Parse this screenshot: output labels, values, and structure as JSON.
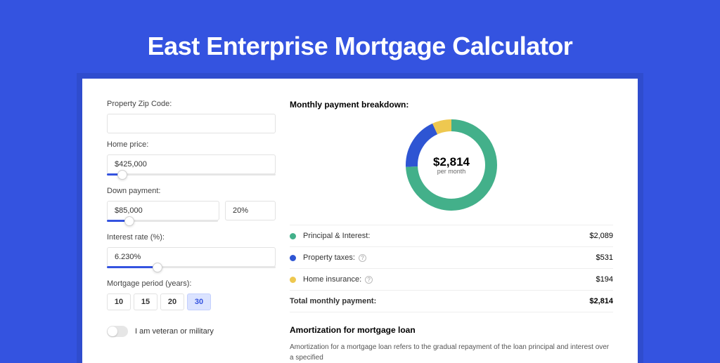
{
  "colors": {
    "brand": "#3453e0",
    "card_bg": "#ffffff",
    "text": "#333333",
    "muted": "#666666",
    "border": "#e2e2e2"
  },
  "hero": {
    "title": "East Enterprise Mortgage Calculator"
  },
  "form": {
    "zip": {
      "label": "Property Zip Code:",
      "value": ""
    },
    "price": {
      "label": "Home price:",
      "value": "$425,000",
      "slider_pct": 9
    },
    "down": {
      "label": "Down payment:",
      "value": "$85,000",
      "pct": "20%",
      "slider_pct": 20
    },
    "rate": {
      "label": "Interest rate (%):",
      "value": "6.230%",
      "slider_pct": 30
    },
    "period": {
      "label": "Mortgage period (years):",
      "options": [
        "10",
        "15",
        "20",
        "30"
      ],
      "selected": "30"
    },
    "veteran": {
      "on": false,
      "label": "I am veteran or military"
    }
  },
  "breakdown": {
    "title": "Monthly payment breakdown:",
    "donut": {
      "size": 130,
      "thickness": 17,
      "center_value": "$2,814",
      "center_unit": "per month",
      "slices": [
        {
          "key": "pi",
          "color": "#43b08a",
          "value": 2089
        },
        {
          "key": "tax",
          "color": "#2e55d3",
          "value": 531
        },
        {
          "key": "ins",
          "color": "#eec850",
          "value": 194
        }
      ]
    },
    "rows": [
      {
        "swatch": "#43b08a",
        "label": "Principal & Interest:",
        "info": false,
        "value": "$2,089"
      },
      {
        "swatch": "#2e55d3",
        "label": "Property taxes:",
        "info": true,
        "value": "$531"
      },
      {
        "swatch": "#eec850",
        "label": "Home insurance:",
        "info": true,
        "value": "$194"
      }
    ],
    "total": {
      "label": "Total monthly payment:",
      "value": "$2,814"
    }
  },
  "amortization": {
    "title": "Amortization for mortgage loan",
    "body": "Amortization for a mortgage loan refers to the gradual repayment of the loan principal and interest over a specified"
  }
}
